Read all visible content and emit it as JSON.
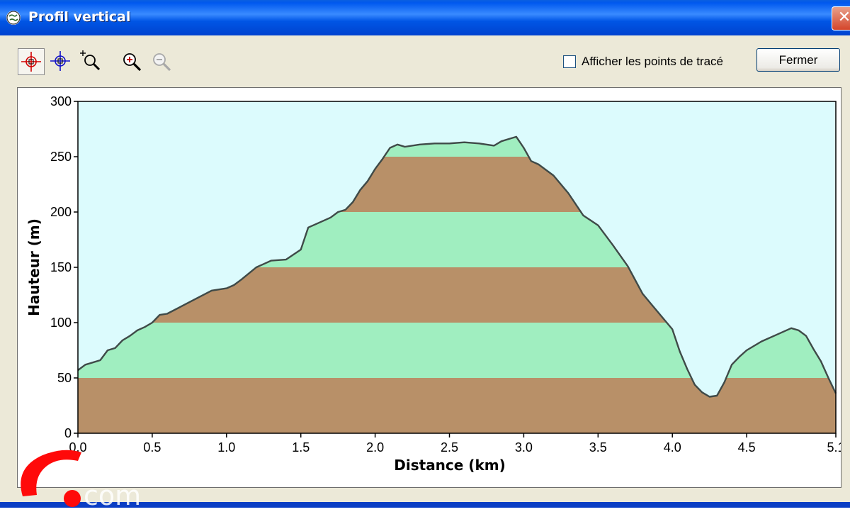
{
  "window": {
    "title": "Profil vertical",
    "close_glyph": "✕"
  },
  "toolbar": {
    "tools": [
      {
        "name": "crosshair-red-icon",
        "active": true
      },
      {
        "name": "crosshair-blue-icon",
        "active": false
      },
      {
        "name": "zoom-select-icon",
        "active": false
      },
      {
        "name": "zoom-in-icon",
        "active": false
      },
      {
        "name": "zoom-out-icon",
        "active": false,
        "disabled": true
      }
    ],
    "show_points_label": "Afficher les points de tracé",
    "show_points_checked": false,
    "close_label": "Fermer"
  },
  "colors": {
    "sky": "#dcfbfd",
    "band_brown": "#b89068",
    "band_green": "#a0eec0",
    "profile_line": "#3f4a48",
    "title_blue": "#0058ee"
  },
  "chart_data": {
    "type": "area",
    "xlabel": "Distance  (km)",
    "ylabel": "Hauteur (m)",
    "xlim": [
      0,
      5.1
    ],
    "ylim": [
      0,
      300
    ],
    "x_ticks": [
      "0.0",
      "0.5",
      "1.0",
      "1.5",
      "2.0",
      "2.5",
      "3.0",
      "3.5",
      "4.0",
      "4.5",
      "5.1"
    ],
    "y_ticks": [
      "0",
      "50",
      "100",
      "150",
      "200",
      "250",
      "300"
    ],
    "band_interval_m": 50,
    "series": [
      {
        "x": [
          0,
          0.05,
          0.1,
          0.15,
          0.2,
          0.25,
          0.3,
          0.35,
          0.4,
          0.45,
          0.5,
          0.55,
          0.6,
          0.7,
          0.8,
          0.9,
          1.0,
          1.05,
          1.1,
          1.2,
          1.25,
          1.3,
          1.4,
          1.5,
          1.55,
          1.6,
          1.7,
          1.75,
          1.8,
          1.85,
          1.9,
          1.95,
          2.0,
          2.05,
          2.1,
          2.15,
          2.2,
          2.3,
          2.4,
          2.5,
          2.6,
          2.7,
          2.8,
          2.85,
          2.9,
          2.95,
          3.0,
          3.05,
          3.1,
          3.2,
          3.3,
          3.4,
          3.5,
          3.6,
          3.7,
          3.8,
          3.85,
          3.9,
          4.0,
          4.05,
          4.1,
          4.15,
          4.2,
          4.25,
          4.3,
          4.35,
          4.4,
          4.45,
          4.5,
          4.6,
          4.7,
          4.8,
          4.85,
          4.9,
          4.95,
          5.0,
          5.05,
          5.1
        ],
        "y": [
          57,
          62,
          64,
          66,
          75,
          77,
          84,
          88,
          93,
          96,
          100,
          107,
          108,
          115,
          122,
          129,
          131,
          134,
          139,
          150,
          153,
          156,
          157,
          166,
          186,
          189,
          195,
          200,
          202,
          209,
          220,
          228,
          239,
          248,
          258,
          261,
          259,
          261,
          262,
          262,
          263,
          262,
          260,
          264,
          266,
          268,
          258,
          246,
          243,
          233,
          217,
          197,
          188,
          170,
          151,
          126,
          118,
          110,
          94,
          74,
          58,
          44,
          37,
          33,
          34,
          46,
          62,
          69,
          75,
          83,
          89,
          95,
          93,
          88,
          76,
          65,
          50,
          36
        ]
      }
    ]
  }
}
